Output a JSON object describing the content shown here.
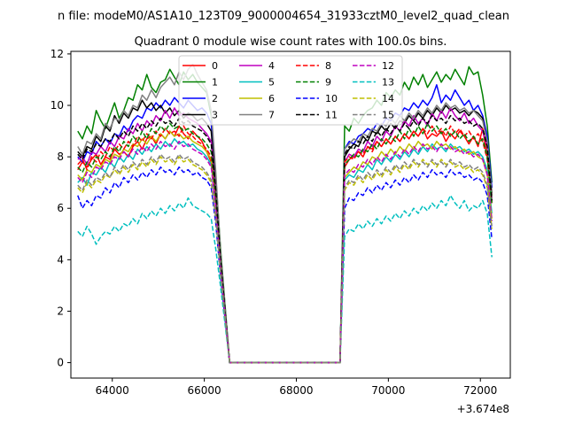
{
  "suptitle": "n file: modeM0/AS1A10_123T09_9000004654_31933cztM0_level2_quad_clean",
  "chart_data": {
    "type": "line",
    "title": "Quadrant 0 module wise count rates with 100.0s bins.",
    "x_offset_label": "+3.674e8",
    "xlim": [
      63100,
      72650
    ],
    "ylim": [
      -0.6,
      12.1
    ],
    "xticks": [
      64000,
      66000,
      68000,
      70000,
      72000
    ],
    "xtick_labels": [
      "64000",
      "66000",
      "68000",
      "70000",
      "72000"
    ],
    "yticks": [
      0,
      2,
      4,
      6,
      8,
      10,
      12
    ],
    "ytick_labels": [
      "0",
      "2",
      "4",
      "6",
      "8",
      "10",
      "12"
    ],
    "xlabel": "",
    "ylabel": "",
    "grid": false,
    "legend_position": "upper center",
    "gap": {
      "drop_start": 66450,
      "zero_start": 66550,
      "zero_end": 68950,
      "rise_end": 69050
    },
    "x_start": 63250,
    "x_step": 100,
    "x_end": 72250,
    "series": [
      {
        "name": "0",
        "color": "#ff0000",
        "dash": "solid",
        "before": [
          7.5,
          7.8,
          7.6,
          7.9,
          8.1,
          7.7,
          8.0,
          7.9,
          8.3,
          8.1,
          8.2,
          8.0,
          8.4,
          8.6,
          8.3,
          8.7,
          8.8,
          8.5,
          8.9,
          8.7,
          9.0,
          8.8,
          9.2,
          8.9,
          8.7,
          9.0,
          8.8,
          8.6,
          8.2,
          7.8,
          6.5,
          4.0
        ],
        "after": [
          7.6,
          7.9,
          8.0,
          8.2,
          8.0,
          8.4,
          8.3,
          8.6,
          8.4,
          8.7,
          8.5,
          8.8,
          8.6,
          8.9,
          8.7,
          9.0,
          8.8,
          9.1,
          8.7,
          8.9,
          8.8,
          9.0,
          8.6,
          8.9,
          8.7,
          9.0,
          8.8,
          8.5,
          8.8,
          8.4,
          9.1,
          8.0,
          6.5
        ]
      },
      {
        "name": "1",
        "color": "#008000",
        "dash": "solid",
        "before": [
          9.0,
          8.7,
          9.2,
          8.9,
          9.8,
          9.4,
          9.1,
          9.6,
          10.1,
          9.5,
          9.8,
          10.3,
          10.2,
          10.8,
          10.6,
          11.2,
          10.7,
          10.5,
          10.9,
          11.0,
          11.4,
          11.1,
          10.8,
          11.3,
          11.0,
          11.2,
          10.9,
          10.7,
          10.5,
          9.6,
          7.2,
          4.5
        ],
        "after": [
          9.2,
          9.0,
          9.5,
          9.3,
          9.6,
          9.8,
          9.9,
          10.2,
          10.0,
          10.5,
          10.3,
          10.6,
          10.4,
          10.9,
          10.6,
          11.1,
          10.8,
          11.2,
          10.7,
          11.0,
          11.3,
          10.9,
          11.2,
          11.0,
          11.4,
          11.1,
          10.8,
          11.5,
          11.2,
          11.3,
          10.4,
          9.2,
          7.0
        ]
      },
      {
        "name": "2",
        "color": "#0000ff",
        "dash": "solid",
        "before": [
          8.0,
          7.8,
          8.2,
          8.1,
          8.6,
          8.4,
          8.7,
          8.5,
          8.9,
          8.8,
          9.2,
          9.0,
          9.4,
          9.6,
          9.5,
          9.9,
          9.8,
          10.1,
          9.9,
          10.2,
          10.0,
          10.3,
          10.1,
          9.9,
          10.2,
          10.0,
          9.8,
          9.9,
          9.7,
          9.3,
          7.0,
          4.2
        ],
        "after": [
          8.3,
          8.6,
          8.5,
          8.8,
          8.9,
          9.1,
          9.0,
          9.3,
          9.2,
          9.5,
          9.4,
          9.7,
          9.6,
          9.9,
          9.8,
          10.1,
          9.9,
          10.2,
          10.0,
          10.3,
          10.8,
          10.1,
          10.4,
          10.2,
          10.6,
          10.3,
          10.0,
          10.2,
          9.8,
          10.0,
          9.6,
          8.8,
          6.8
        ]
      },
      {
        "name": "3",
        "color": "#000000",
        "dash": "solid",
        "before": [
          8.2,
          8.0,
          8.4,
          8.3,
          8.8,
          8.6,
          9.2,
          9.0,
          9.6,
          9.3,
          9.7,
          9.5,
          9.9,
          9.8,
          10.2,
          9.9,
          10.1,
          9.8,
          10.0,
          9.7,
          9.9,
          9.6,
          9.8,
          9.5,
          9.7,
          9.6,
          9.4,
          9.5,
          9.3,
          9.0,
          6.8,
          4.1
        ],
        "after": [
          8.0,
          8.3,
          8.5,
          8.4,
          8.8,
          8.6,
          9.0,
          8.9,
          9.2,
          9.0,
          9.3,
          9.1,
          9.4,
          9.3,
          9.6,
          9.4,
          9.7,
          9.5,
          9.8,
          9.6,
          9.9,
          9.7,
          10.0,
          9.8,
          9.9,
          9.7,
          9.8,
          9.6,
          9.8,
          9.7,
          9.5,
          8.5,
          6.6
        ]
      },
      {
        "name": "4",
        "color": "#bf00bf",
        "dash": "solid",
        "before": [
          7.9,
          8.0,
          7.7,
          8.2,
          8.1,
          8.4,
          8.2,
          8.6,
          8.4,
          8.8,
          8.7,
          9.1,
          8.9,
          9.3,
          9.0,
          9.4,
          9.2,
          9.6,
          9.4,
          9.8,
          9.5,
          9.9,
          9.6,
          9.7,
          9.5,
          9.4,
          9.3,
          9.1,
          8.9,
          8.6,
          6.6,
          4.0
        ],
        "after": [
          7.8,
          8.1,
          8.0,
          8.3,
          8.2,
          8.6,
          8.4,
          8.8,
          8.6,
          9.0,
          8.8,
          9.2,
          9.0,
          9.4,
          9.2,
          9.6,
          9.3,
          9.5,
          9.2,
          9.7,
          9.4,
          9.8,
          9.5,
          9.9,
          9.6,
          9.4,
          9.7,
          9.3,
          9.5,
          9.2,
          9.0,
          8.4,
          6.3
        ]
      },
      {
        "name": "5",
        "color": "#00bfbf",
        "dash": "solid",
        "before": [
          7.0,
          7.2,
          6.9,
          7.4,
          7.3,
          7.6,
          7.4,
          7.8,
          7.6,
          8.0,
          7.8,
          8.1,
          7.9,
          8.3,
          8.1,
          8.4,
          8.2,
          8.5,
          8.3,
          8.6,
          8.4,
          8.7,
          8.5,
          8.6,
          8.4,
          8.5,
          8.3,
          8.2,
          8.0,
          7.7,
          6.0,
          3.8
        ],
        "after": [
          7.1,
          7.3,
          7.2,
          7.5,
          7.4,
          7.7,
          7.5,
          7.9,
          7.7,
          8.0,
          7.8,
          8.1,
          7.9,
          8.2,
          8.0,
          8.3,
          8.1,
          8.4,
          8.2,
          8.5,
          8.3,
          8.4,
          8.2,
          8.5,
          8.3,
          8.4,
          8.2,
          8.3,
          8.1,
          8.2,
          8.0,
          7.5,
          5.8
        ]
      },
      {
        "name": "6",
        "color": "#bfbf00",
        "dash": "solid",
        "before": [
          7.3,
          7.1,
          7.5,
          7.4,
          7.7,
          7.6,
          7.9,
          7.8,
          8.1,
          8.0,
          8.3,
          8.2,
          8.5,
          8.4,
          8.7,
          8.5,
          8.8,
          8.6,
          8.9,
          8.7,
          9.0,
          8.8,
          8.9,
          8.7,
          8.8,
          8.6,
          8.5,
          8.4,
          8.2,
          7.9,
          6.1,
          3.9
        ],
        "after": [
          7.2,
          7.4,
          7.6,
          7.5,
          7.8,
          7.7,
          8.0,
          7.9,
          8.2,
          8.0,
          8.3,
          8.1,
          8.4,
          8.2,
          8.5,
          8.3,
          8.6,
          8.4,
          8.5,
          8.3,
          8.6,
          8.4,
          8.5,
          8.3,
          8.4,
          8.2,
          8.3,
          8.1,
          8.2,
          8.0,
          7.9,
          7.3,
          5.6
        ]
      },
      {
        "name": "7",
        "color": "#808080",
        "dash": "solid",
        "before": [
          8.4,
          8.1,
          8.6,
          8.5,
          8.9,
          8.7,
          9.3,
          9.1,
          9.5,
          9.4,
          9.8,
          9.6,
          10.0,
          9.9,
          10.4,
          10.2,
          10.6,
          10.3,
          10.7,
          10.9,
          11.1,
          10.8,
          11.3,
          11.0,
          11.4,
          11.6,
          11.2,
          10.9,
          10.6,
          9.8,
          7.4,
          4.4
        ],
        "after": [
          8.3,
          8.5,
          8.7,
          8.6,
          8.9,
          8.8,
          9.1,
          9.0,
          9.3,
          9.2,
          9.5,
          9.3,
          9.6,
          9.4,
          9.7,
          9.5,
          9.8,
          9.6,
          9.9,
          9.7,
          10.0,
          9.8,
          10.1,
          9.9,
          10.0,
          9.8,
          9.9,
          9.7,
          9.8,
          9.6,
          9.4,
          8.6,
          6.5
        ]
      },
      {
        "name": "8",
        "color": "#ff0000",
        "dash": "dashed",
        "before": [
          7.7,
          7.9,
          7.5,
          8.0,
          7.8,
          8.2,
          8.0,
          8.4,
          8.2,
          8.5,
          8.3,
          8.6,
          8.4,
          8.8,
          8.6,
          8.9,
          8.7,
          9.0,
          8.8,
          9.1,
          8.9,
          9.0,
          8.8,
          9.2,
          8.9,
          8.8,
          8.6,
          8.5,
          8.3,
          8.0,
          6.3,
          3.9
        ],
        "after": [
          7.8,
          8.0,
          7.9,
          8.2,
          8.1,
          8.4,
          8.2,
          8.6,
          8.4,
          8.7,
          8.5,
          8.8,
          8.6,
          8.9,
          8.7,
          9.0,
          8.8,
          9.1,
          8.9,
          9.2,
          8.9,
          9.1,
          8.8,
          9.2,
          8.9,
          9.1,
          8.8,
          9.0,
          8.7,
          8.9,
          8.6,
          7.9,
          6.2
        ]
      },
      {
        "name": "9",
        "color": "#008000",
        "dash": "dashed",
        "before": [
          7.6,
          7.4,
          7.8,
          7.6,
          8.0,
          7.9,
          8.2,
          8.0,
          8.4,
          8.2,
          8.6,
          8.4,
          8.8,
          8.6,
          9.0,
          8.7,
          9.1,
          8.9,
          9.2,
          9.0,
          9.3,
          9.1,
          9.2,
          9.0,
          9.1,
          8.9,
          8.8,
          8.7,
          8.5,
          8.2,
          6.4,
          3.9
        ],
        "after": [
          7.7,
          7.9,
          8.1,
          8.0,
          8.3,
          8.2,
          8.5,
          8.3,
          8.7,
          8.5,
          8.8,
          8.6,
          9.0,
          8.7,
          9.1,
          8.8,
          9.2,
          8.9,
          9.3,
          9.0,
          9.2,
          8.9,
          9.1,
          8.8,
          9.0,
          8.7,
          8.9,
          8.6,
          8.8,
          8.5,
          8.7,
          8.0,
          6.2
        ]
      },
      {
        "name": "10",
        "color": "#0000ff",
        "dash": "dashed",
        "before": [
          6.5,
          6.0,
          6.3,
          6.1,
          6.5,
          6.4,
          6.8,
          6.6,
          7.0,
          6.8,
          7.2,
          7.0,
          7.3,
          7.1,
          7.4,
          7.2,
          7.5,
          7.3,
          7.6,
          7.4,
          7.5,
          7.3,
          7.6,
          7.4,
          7.5,
          7.3,
          7.4,
          7.2,
          7.1,
          6.8,
          5.4,
          3.4
        ],
        "after": [
          6.0,
          6.4,
          6.3,
          6.6,
          6.5,
          6.8,
          6.6,
          6.9,
          6.7,
          7.0,
          6.8,
          7.1,
          6.9,
          7.2,
          7.0,
          7.3,
          7.1,
          7.4,
          7.2,
          7.5,
          7.3,
          7.4,
          7.2,
          7.5,
          7.3,
          7.4,
          7.2,
          7.3,
          7.1,
          7.2,
          7.0,
          6.5,
          4.8
        ]
      },
      {
        "name": "11",
        "color": "#000000",
        "dash": "dashed",
        "before": [
          8.1,
          7.9,
          8.3,
          8.2,
          8.5,
          8.4,
          8.7,
          8.6,
          8.9,
          8.7,
          9.0,
          8.8,
          9.2,
          9.0,
          9.3,
          9.1,
          9.4,
          9.2,
          9.5,
          9.3,
          9.4,
          9.2,
          9.5,
          9.3,
          9.4,
          9.2,
          9.1,
          9.0,
          8.8,
          8.5,
          6.7,
          4.1
        ],
        "after": [
          8.1,
          8.4,
          8.3,
          8.6,
          8.5,
          8.8,
          8.6,
          9.0,
          8.8,
          9.1,
          8.9,
          9.2,
          9.0,
          9.3,
          9.1,
          9.4,
          9.2,
          9.5,
          9.3,
          9.6,
          9.4,
          9.5,
          9.3,
          9.6,
          9.4,
          9.5,
          9.3,
          9.4,
          9.2,
          9.3,
          9.1,
          8.4,
          6.3
        ]
      },
      {
        "name": "12",
        "color": "#bf00bf",
        "dash": "dashed",
        "before": [
          7.2,
          7.0,
          7.4,
          7.2,
          7.6,
          7.5,
          7.8,
          7.7,
          8.0,
          7.9,
          8.2,
          8.0,
          8.3,
          8.1,
          8.4,
          8.2,
          8.5,
          8.3,
          8.6,
          8.4,
          8.5,
          8.3,
          8.6,
          8.4,
          8.5,
          8.3,
          8.2,
          8.1,
          7.9,
          7.6,
          6.0,
          3.7
        ],
        "after": [
          7.3,
          7.5,
          7.4,
          7.7,
          7.6,
          7.9,
          7.7,
          8.0,
          7.8,
          8.1,
          7.9,
          8.2,
          8.0,
          8.3,
          8.1,
          8.4,
          8.2,
          8.5,
          8.3,
          8.4,
          8.2,
          8.5,
          8.3,
          8.4,
          8.2,
          8.3,
          8.1,
          8.2,
          8.0,
          8.1,
          7.9,
          7.3,
          5.5
        ]
      },
      {
        "name": "13",
        "color": "#00bfbf",
        "dash": "dashed",
        "before": [
          5.1,
          4.9,
          5.3,
          5.0,
          4.6,
          4.9,
          5.1,
          5.0,
          5.3,
          5.1,
          5.4,
          5.3,
          5.6,
          5.4,
          5.8,
          5.6,
          5.9,
          5.7,
          6.0,
          5.8,
          6.1,
          5.9,
          6.2,
          6.0,
          6.4,
          6.1,
          6.0,
          5.9,
          5.8,
          5.6,
          4.4,
          3.0
        ],
        "after": [
          4.9,
          5.2,
          5.1,
          5.4,
          5.2,
          5.5,
          5.3,
          5.6,
          5.4,
          5.7,
          5.5,
          5.8,
          5.6,
          5.9,
          5.7,
          6.0,
          5.8,
          6.1,
          5.9,
          6.2,
          6.0,
          6.3,
          6.1,
          6.5,
          6.2,
          6.0,
          6.3,
          5.9,
          6.1,
          6.0,
          6.3,
          5.8,
          4.1
        ]
      },
      {
        "name": "14",
        "color": "#bfbf00",
        "dash": "dashed",
        "before": [
          6.8,
          6.6,
          7.0,
          6.8,
          7.1,
          7.0,
          7.3,
          7.2,
          7.5,
          7.3,
          7.6,
          7.4,
          7.7,
          7.5,
          7.8,
          7.6,
          7.9,
          7.7,
          8.0,
          7.8,
          7.9,
          7.7,
          8.0,
          7.8,
          7.9,
          7.7,
          7.6,
          7.5,
          7.3,
          7.0,
          5.6,
          3.5
        ],
        "after": [
          6.7,
          7.0,
          6.9,
          7.2,
          7.0,
          7.3,
          7.1,
          7.4,
          7.2,
          7.5,
          7.3,
          7.6,
          7.4,
          7.7,
          7.5,
          7.8,
          7.6,
          7.9,
          7.7,
          7.8,
          7.6,
          7.9,
          7.7,
          7.8,
          7.6,
          7.7,
          7.5,
          7.6,
          7.4,
          7.5,
          7.3,
          6.8,
          5.2
        ]
      },
      {
        "name": "15",
        "color": "#808080",
        "dash": "dashed",
        "before": [
          6.9,
          6.7,
          7.1,
          6.9,
          7.2,
          7.1,
          7.4,
          7.2,
          7.6,
          7.4,
          7.7,
          7.5,
          7.8,
          7.6,
          7.9,
          7.7,
          8.0,
          7.8,
          8.1,
          7.9,
          8.0,
          7.8,
          8.1,
          7.9,
          8.0,
          7.8,
          7.7,
          7.6,
          7.4,
          7.1,
          5.7,
          3.6
        ],
        "after": [
          6.8,
          7.1,
          7.0,
          7.3,
          7.1,
          7.4,
          7.2,
          7.5,
          7.3,
          7.6,
          7.4,
          7.7,
          7.5,
          7.8,
          7.6,
          7.9,
          7.7,
          7.8,
          7.6,
          7.9,
          7.7,
          7.8,
          7.6,
          7.9,
          7.7,
          7.8,
          7.6,
          7.7,
          7.5,
          7.6,
          7.4,
          6.9,
          5.3
        ]
      }
    ]
  }
}
